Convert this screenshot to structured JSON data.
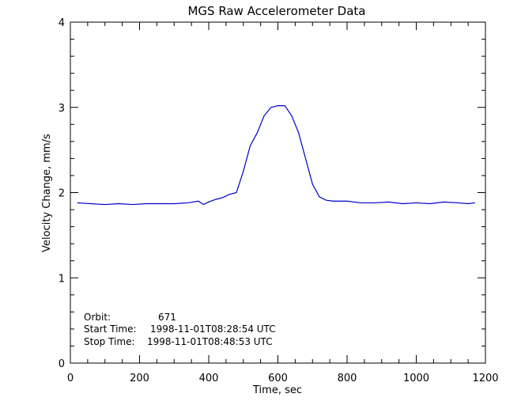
{
  "chart_data": {
    "type": "line",
    "title": "MGS Raw Accelerometer Data",
    "xlabel": "Time, sec",
    "ylabel": "Velocity Change, mm/s",
    "xlim": [
      0,
      1200
    ],
    "ylim": [
      0,
      4
    ],
    "xticks": [
      0,
      200,
      400,
      600,
      800,
      1000,
      1200
    ],
    "yticks": [
      0,
      1,
      2,
      3,
      4
    ],
    "grid": false,
    "line_color": "#0000cc",
    "series": [
      {
        "x": [
          20,
          60,
          100,
          140,
          180,
          220,
          260,
          300,
          340,
          370,
          385,
          400,
          420,
          440,
          460,
          480,
          500,
          520,
          540,
          560,
          580,
          600,
          620,
          640,
          660,
          680,
          700,
          720,
          740,
          760,
          800,
          840,
          880,
          920,
          960,
          1000,
          1040,
          1080,
          1120,
          1150,
          1170
        ],
        "values": [
          1.88,
          1.87,
          1.86,
          1.87,
          1.86,
          1.87,
          1.87,
          1.87,
          1.88,
          1.9,
          1.86,
          1.89,
          1.92,
          1.94,
          1.98,
          2.0,
          2.25,
          2.55,
          2.7,
          2.9,
          3.0,
          3.02,
          3.02,
          2.9,
          2.7,
          2.4,
          2.1,
          1.95,
          1.91,
          1.9,
          1.9,
          1.88,
          1.88,
          1.89,
          1.87,
          1.88,
          1.87,
          1.89,
          1.88,
          1.87,
          1.88
        ]
      }
    ],
    "annotations": [
      {
        "label": "Orbit:",
        "value": "671"
      },
      {
        "label": "Start Time:",
        "value": "1998-11-01T08:28:54 UTC"
      },
      {
        "label": "Stop Time:",
        "value": "1998-11-01T08:48:53 UTC"
      }
    ]
  }
}
